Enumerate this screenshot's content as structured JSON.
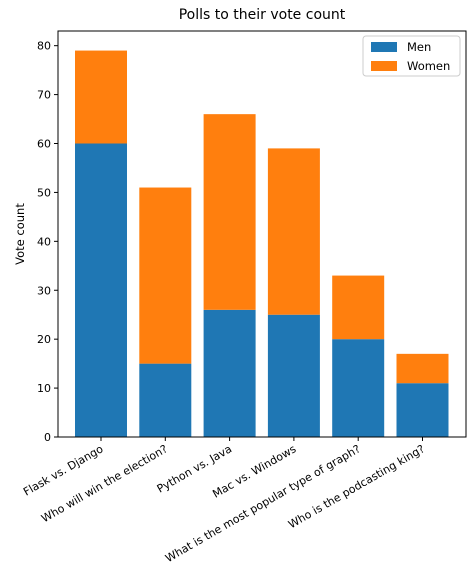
{
  "chart_data": {
    "type": "bar",
    "stacked": true,
    "title": "Polls to their vote count",
    "xlabel": "",
    "ylabel": "Vote count",
    "categories": [
      "Flask vs. Django",
      "Who will win the election?",
      "Python vs. Java",
      "Mac vs. Windows",
      "What is the most popular type of graph?",
      "Who is the podcasting king?"
    ],
    "series": [
      {
        "name": "Men",
        "color": "#1f77b4",
        "values": [
          60,
          15,
          26,
          25,
          20,
          11
        ]
      },
      {
        "name": "Women",
        "color": "#ff7f0e",
        "values": [
          19,
          36,
          40,
          34,
          13,
          6
        ]
      }
    ],
    "ylim": [
      0,
      83
    ],
    "yticks": [
      0,
      10,
      20,
      30,
      40,
      50,
      60,
      70,
      80
    ],
    "grid": false,
    "legend_position": "top-right"
  }
}
